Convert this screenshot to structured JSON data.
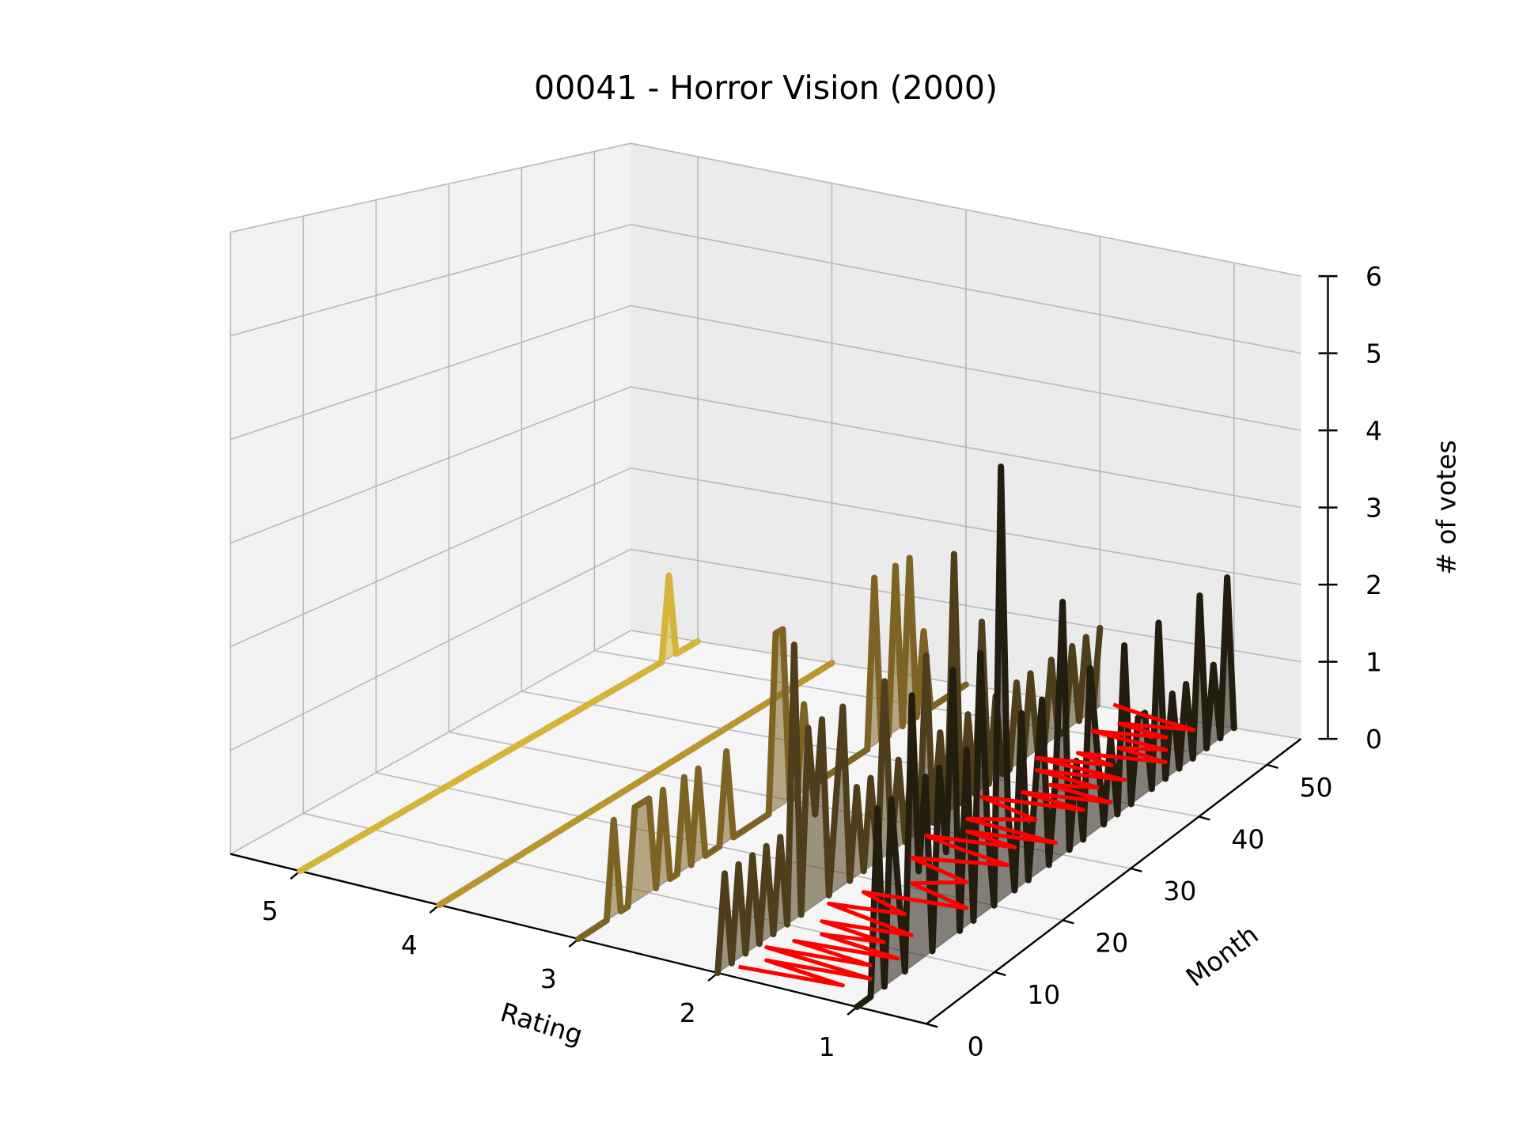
{
  "chart_data": {
    "type": "line",
    "projection": "3d",
    "title": "00041 - Horror Vision (2000)",
    "xlabel": "Rating",
    "ylabel": "Month",
    "zlabel": "# of votes",
    "x_ticks": [
      "5",
      "4",
      "3",
      "2",
      "1"
    ],
    "y_ticks": [
      "0",
      "10",
      "20",
      "30",
      "40",
      "50"
    ],
    "z_ticks": [
      "0",
      "1",
      "2",
      "3",
      "4",
      "5",
      "6"
    ],
    "xlim": [
      0.5,
      5.5
    ],
    "ylim": [
      0,
      55
    ],
    "zlim": [
      0,
      6
    ],
    "grid": true,
    "series": [
      {
        "rating": 5,
        "color": "#d4b43a",
        "months": [
          0,
          1,
          2,
          3,
          4,
          5,
          6,
          7,
          8,
          9,
          10,
          11,
          12,
          13,
          14,
          15,
          16,
          17,
          18,
          19,
          20,
          21,
          22,
          23,
          24,
          25,
          26,
          27,
          28,
          29,
          30,
          31,
          32,
          33,
          34,
          35,
          36,
          37,
          38,
          39,
          40,
          41,
          42,
          43,
          44,
          45,
          46,
          47,
          48,
          49,
          50,
          51,
          52,
          53,
          54,
          55
        ],
        "values": [
          0,
          0,
          0,
          0,
          0,
          0,
          0,
          0,
          0,
          0,
          0,
          0,
          0,
          0,
          0,
          0,
          0,
          0,
          0,
          0,
          0,
          0,
          0,
          0,
          0,
          0,
          0,
          0,
          0,
          0,
          0,
          0,
          0,
          0,
          0,
          0,
          0,
          0,
          0,
          0,
          0,
          0,
          0,
          0,
          0,
          0,
          0,
          0,
          0,
          0,
          0,
          1,
          0,
          0,
          0,
          0
        ]
      },
      {
        "rating": 4,
        "color": "#b8952d",
        "months": [
          0,
          1,
          2,
          3,
          4,
          5,
          6,
          7,
          8,
          9,
          10,
          11,
          12,
          13,
          14,
          15,
          16,
          17,
          18,
          19,
          20,
          21,
          22,
          23,
          24,
          25,
          26,
          27,
          28,
          29,
          30,
          31,
          32,
          33,
          34,
          35,
          36,
          37,
          38,
          39,
          40,
          41,
          42,
          43,
          44,
          45,
          46,
          47,
          48,
          49,
          50,
          51,
          52,
          53,
          54,
          55
        ],
        "values": [
          0,
          0,
          0,
          0,
          0,
          0,
          0,
          0,
          0,
          0,
          0,
          0,
          0,
          0,
          0,
          0,
          0,
          0,
          0,
          0,
          0,
          0,
          0,
          0,
          0,
          0,
          0,
          0,
          0,
          0,
          0,
          0,
          0,
          0,
          0,
          0,
          0,
          0,
          0,
          0,
          0,
          0,
          0,
          0,
          0,
          0,
          0,
          0,
          0,
          0,
          0,
          0,
          0,
          0,
          0,
          0
        ]
      },
      {
        "rating": 3,
        "color": "#7d6424",
        "months": [
          0,
          1,
          2,
          3,
          4,
          5,
          6,
          7,
          8,
          9,
          10,
          11,
          12,
          13,
          14,
          15,
          16,
          17,
          18,
          19,
          20,
          21,
          22,
          23,
          24,
          25,
          26,
          27,
          28,
          29,
          30,
          31,
          32,
          33,
          34,
          35,
          36,
          37,
          38,
          39,
          40,
          41,
          42,
          43,
          44,
          45,
          46,
          47,
          48,
          49,
          50,
          51,
          52,
          53,
          54,
          55
        ],
        "values": [
          0,
          0,
          0,
          0,
          0,
          1,
          0,
          0,
          1,
          1,
          1,
          0,
          1,
          0,
          0,
          1,
          0,
          1,
          0,
          0,
          0,
          1,
          0,
          0,
          0,
          0,
          0,
          0,
          2,
          2,
          0,
          0,
          1,
          0,
          0,
          0,
          0,
          0,
          0,
          0,
          0,
          0,
          2,
          0,
          0,
          2,
          0,
          2,
          0,
          1,
          0,
          0,
          0,
          0,
          0,
          0
        ]
      },
      {
        "rating": 2,
        "color": "#4e3e1c",
        "months": [
          0,
          1,
          2,
          3,
          4,
          5,
          6,
          7,
          8,
          9,
          10,
          11,
          12,
          13,
          14,
          15,
          16,
          17,
          18,
          19,
          20,
          21,
          22,
          23,
          24,
          25,
          26,
          27,
          28,
          29,
          30,
          31,
          32,
          33,
          34,
          35,
          36,
          37,
          38,
          39,
          40,
          41,
          42,
          43,
          44,
          45,
          46,
          47,
          48,
          49,
          50,
          51,
          52,
          53,
          54,
          55
        ],
        "values": [
          0,
          1,
          0,
          1,
          0,
          1,
          0,
          1,
          0,
          1,
          0,
          3,
          0,
          2,
          1,
          2,
          0,
          1,
          2,
          0,
          1,
          0,
          1,
          0,
          2,
          0,
          1,
          0,
          1,
          0,
          2,
          0,
          1,
          0,
          3,
          0,
          1,
          0,
          2,
          0,
          1,
          0,
          0,
          1,
          0,
          1,
          0,
          0,
          1,
          0,
          0,
          1,
          0,
          1,
          0,
          1
        ]
      },
      {
        "rating": 1,
        "color": "#231d10",
        "months": [
          0,
          1,
          2,
          3,
          4,
          5,
          6,
          7,
          8,
          9,
          10,
          11,
          12,
          13,
          14,
          15,
          16,
          17,
          18,
          19,
          20,
          21,
          22,
          23,
          24,
          25,
          26,
          27,
          28,
          29,
          30,
          31,
          32,
          33,
          34,
          35,
          36,
          37,
          38,
          39,
          40,
          41,
          42,
          43,
          44,
          45,
          46,
          47,
          48,
          49,
          50,
          51,
          52,
          53,
          54,
          55
        ],
        "values": [
          0,
          0,
          0,
          2,
          0,
          2,
          1,
          0,
          3,
          1,
          2,
          0,
          2,
          1,
          3,
          0,
          2,
          0,
          3,
          1,
          0,
          5,
          1,
          0,
          2,
          0,
          1,
          2,
          0,
          1,
          3,
          0,
          1,
          0,
          2,
          1,
          0,
          1,
          0,
          2,
          0,
          1,
          1,
          0,
          2,
          0,
          1,
          0,
          1,
          0,
          2,
          0,
          1,
          0,
          2,
          0
        ]
      }
    ],
    "red_trace": {
      "color": "#ff0000",
      "points": [
        [
          1.9,
          1
        ],
        [
          1.2,
          2
        ],
        [
          1.8,
          3
        ],
        [
          1.1,
          4
        ],
        [
          1.9,
          5
        ],
        [
          1.2,
          6
        ],
        [
          1.8,
          7
        ],
        [
          1.1,
          8
        ],
        [
          1.7,
          9
        ],
        [
          1.3,
          10
        ],
        [
          1.8,
          11
        ],
        [
          1.2,
          12
        ],
        [
          1.9,
          14
        ],
        [
          1.4,
          15
        ],
        [
          1.8,
          17
        ],
        [
          1.1,
          18
        ],
        [
          1.6,
          20
        ],
        [
          1.3,
          22
        ],
        [
          1.8,
          24
        ],
        [
          1.2,
          26
        ],
        [
          1.6,
          27
        ],
        [
          1.9,
          28
        ],
        [
          1.3,
          29
        ],
        [
          1.7,
          30
        ],
        [
          1.1,
          31
        ],
        [
          1.8,
          32
        ],
        [
          1.4,
          34
        ],
        [
          1.9,
          36
        ],
        [
          1.2,
          37
        ],
        [
          1.7,
          38
        ],
        [
          1.1,
          39
        ],
        [
          1.6,
          40
        ],
        [
          1.3,
          41
        ],
        [
          1.8,
          42
        ],
        [
          1.2,
          43
        ],
        [
          1.9,
          44
        ],
        [
          1.4,
          45
        ],
        [
          1.7,
          46
        ],
        [
          1.1,
          47
        ],
        [
          1.5,
          48
        ],
        [
          1.2,
          49
        ],
        [
          1.8,
          50
        ],
        [
          1.3,
          51
        ],
        [
          1.7,
          52
        ],
        [
          1.2,
          53
        ],
        [
          1.6,
          54
        ],
        [
          1.9,
          55
        ]
      ]
    }
  }
}
